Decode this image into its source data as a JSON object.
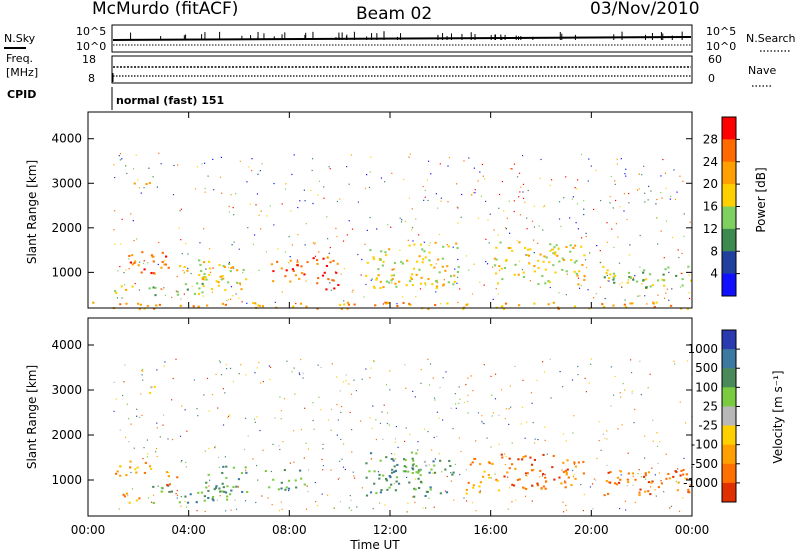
{
  "header": {
    "station": "McMurdo (fitACF)",
    "beam": "Beam 02",
    "date": "03/Nov/2010"
  },
  "top_panels": {
    "nsky_label": "N.Sky",
    "nsky_ticks": [
      "10^5",
      "10^0"
    ],
    "nsearch_label": "N.Search",
    "nsearch_ticks": [
      "10^5",
      "10^0"
    ],
    "freq_label": "Freq.",
    "freq_unit": "[MHz]",
    "freq_ticks": [
      "18",
      "8"
    ],
    "nave_label": "Nave",
    "nave_ticks": [
      "60",
      "0"
    ],
    "cpid_label": "CPID",
    "cpid_value": "normal (fast) 151"
  },
  "chart_data": [
    {
      "type": "heatmap",
      "name": "power",
      "ylabel": "Slant Range [km]",
      "ylim": [
        200,
        4600
      ],
      "yticks": [
        "4000",
        "3000",
        "2000",
        "1000"
      ],
      "colorbar_label": "Power [dB]",
      "colorbar_ticks": [
        "28",
        "24",
        "20",
        "16",
        "12",
        "8",
        "4"
      ],
      "colors": [
        "#ff0000",
        "#ff6a00",
        "#ffa000",
        "#ffd000",
        "#7fd060",
        "#3c8a50",
        "#2040a0",
        "#1010ff"
      ],
      "echo_regions": [
        {
          "t": [
            1.0,
            1.9
          ],
          "r": [
            500,
            750
          ],
          "level": 3
        },
        {
          "t": [
            1.4,
            3.2
          ],
          "r": [
            900,
            1500
          ],
          "level": 1
        },
        {
          "t": [
            1.6,
            2.6
          ],
          "r": [
            2950,
            3100
          ],
          "level": 1
        },
        {
          "t": [
            2.4,
            4.6
          ],
          "r": [
            500,
            800
          ],
          "level": 4
        },
        {
          "t": [
            3.3,
            4.8
          ],
          "r": [
            850,
            1300
          ],
          "level": 3
        },
        {
          "t": [
            4.6,
            6.3
          ],
          "r": [
            600,
            1300
          ],
          "level": 3
        },
        {
          "t": [
            7.2,
            8.7
          ],
          "r": [
            700,
            1300
          ],
          "level": 1
        },
        {
          "t": [
            8.9,
            10.0
          ],
          "r": [
            600,
            1400
          ],
          "level": 1
        },
        {
          "t": [
            11.0,
            14.8
          ],
          "r": [
            650,
            1700
          ],
          "level": 3
        },
        {
          "t": [
            16.0,
            19.7
          ],
          "r": [
            750,
            1700
          ],
          "level": 3
        },
        {
          "t": [
            20.4,
            21.3
          ],
          "r": [
            650,
            1200
          ],
          "level": 4
        },
        {
          "t": [
            21.3,
            24.0
          ],
          "r": [
            650,
            1150
          ],
          "level": 4
        },
        {
          "t": [
            0.0,
            24.0
          ],
          "r": [
            200,
            350
          ],
          "level": 2
        }
      ]
    },
    {
      "type": "heatmap",
      "name": "velocity",
      "ylabel": "Slant Range [km]",
      "xlabel": "Time UT",
      "ylim": [
        200,
        4600
      ],
      "yticks": [
        "4000",
        "3000",
        "2000",
        "1000"
      ],
      "xticks": [
        "00:00",
        "04:00",
        "08:00",
        "12:00",
        "16:00",
        "20:00",
        "00:00"
      ],
      "xlim": [
        0,
        24
      ],
      "colorbar_label": "Velocity [m s⁻¹]",
      "colorbar_ticks": [
        "1000",
        "500",
        "100",
        "25",
        "-25",
        "-100",
        "-500",
        "-1000"
      ],
      "colors": [
        "#2a3bb0",
        "#3c78a0",
        "#4a8a5a",
        "#7acb40",
        "#b8b8b8",
        "#ffd000",
        "#ffa000",
        "#ff7000",
        "#e03000"
      ],
      "echo_regions": [
        {
          "t": [
            1.0,
            2.5
          ],
          "r": [
            1050,
            1500
          ],
          "v": 6
        },
        {
          "t": [
            1.0,
            2.0
          ],
          "r": [
            500,
            750
          ],
          "v": 6
        },
        {
          "t": [
            2.5,
            5.5
          ],
          "r": [
            500,
            900
          ],
          "v": 2
        },
        {
          "t": [
            2.8,
            3.6
          ],
          "r": [
            900,
            1200
          ],
          "v": 7
        },
        {
          "t": [
            4.6,
            6.3
          ],
          "r": [
            650,
            1350
          ],
          "v": 2
        },
        {
          "t": [
            7.0,
            8.6
          ],
          "r": [
            800,
            1250
          ],
          "v": 2
        },
        {
          "t": [
            11.0,
            14.5
          ],
          "r": [
            650,
            1650
          ],
          "v": 2
        },
        {
          "t": [
            12.5,
            13.4
          ],
          "r": [
            900,
            1500
          ],
          "v": 3
        },
        {
          "t": [
            15.0,
            16.3
          ],
          "r": [
            700,
            1500
          ],
          "v": 6
        },
        {
          "t": [
            16.3,
            19.7
          ],
          "r": [
            800,
            1600
          ],
          "v": 7
        },
        {
          "t": [
            20.4,
            24.0
          ],
          "r": [
            600,
            1250
          ],
          "v": 7
        },
        {
          "t": [
            1.8,
            2.8
          ],
          "r": [
            2950,
            3100
          ],
          "v": 4
        }
      ]
    }
  ]
}
